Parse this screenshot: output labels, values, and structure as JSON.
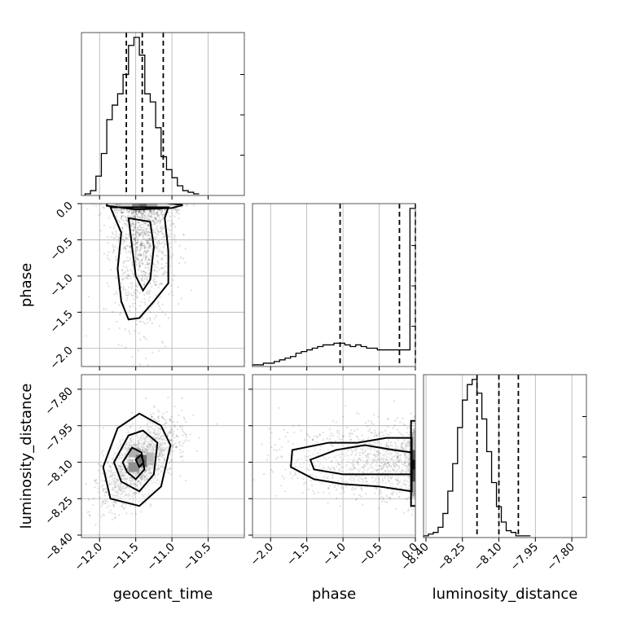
{
  "chart_data": {
    "type": "corner",
    "title": "",
    "grid": true,
    "parameters": [
      {
        "key": "geocent_time",
        "label": "geocent_time",
        "range": [
          -12.25,
          -10.0
        ],
        "ticks": [
          -12.0,
          -11.5,
          -11.0,
          -10.5
        ],
        "tick_labels": [
          "−12.0",
          "−11.5",
          "−11.0",
          "−10.5"
        ],
        "quantiles": [
          -11.63,
          -11.41,
          -11.12
        ],
        "histogram": {
          "edges_start": -12.2,
          "bin_width": 0.075,
          "counts": [
            1,
            3,
            12,
            26,
            47,
            56,
            63,
            75,
            93,
            98,
            87,
            63,
            58,
            42,
            24,
            16,
            11,
            6,
            3,
            2,
            1
          ]
        }
      },
      {
        "key": "phase",
        "label": "phase",
        "range": [
          -2.25,
          0.0
        ],
        "ticks": [
          -2.0,
          -1.5,
          -1.0,
          -0.5,
          0.0
        ],
        "tick_labels": [
          "−2.0",
          "−1.5",
          "−1.0",
          "−0.5",
          "0.0"
        ],
        "quantiles": [
          -1.04,
          -0.22,
          0.0
        ],
        "histogram": {
          "edges_start": -2.25,
          "bin_width": 0.075,
          "counts": [
            1,
            1,
            2,
            2,
            3,
            4,
            5,
            6,
            8,
            9,
            10,
            11,
            12,
            13,
            13,
            14,
            14,
            13,
            12,
            13,
            12,
            11,
            11,
            10,
            10,
            10,
            10,
            10,
            10,
            95
          ]
        }
      },
      {
        "key": "luminosity_distance",
        "label": "luminosity_distance",
        "range": [
          -8.41,
          -7.74
        ],
        "ticks": [
          -8.4,
          -8.25,
          -8.1,
          -7.95,
          -7.8
        ],
        "tick_labels": [
          "−8.40",
          "−8.25",
          "−8.10",
          "−7.95",
          "−7.80"
        ],
        "quantiles": [
          -8.19,
          -8.1,
          -8.02
        ],
        "histogram": {
          "edges_start": -8.41,
          "bin_width": 0.02,
          "counts": [
            1,
            2,
            3,
            6,
            14,
            27,
            43,
            64,
            80,
            89,
            92,
            84,
            69,
            50,
            32,
            18,
            9,
            4,
            3,
            1,
            1,
            1
          ]
        }
      }
    ]
  }
}
